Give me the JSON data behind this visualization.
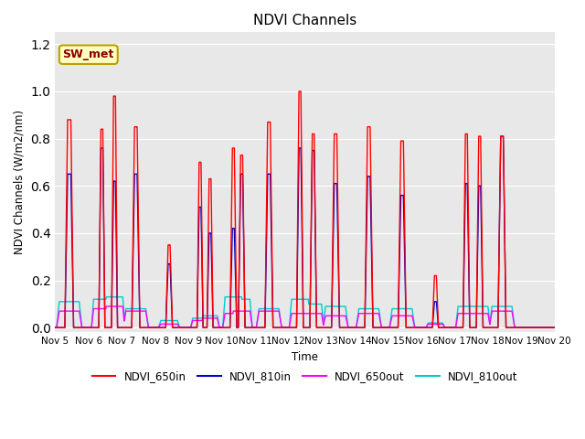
{
  "title": "NDVI Channels",
  "xlabel": "Time",
  "ylabel": "NDVI Channels (W/m2/nm)",
  "ylim": [
    -0.02,
    1.25
  ],
  "yticks": [
    0.0,
    0.2,
    0.4,
    0.6,
    0.8,
    1.0,
    1.2
  ],
  "xtick_labels": [
    "Nov 5",
    "Nov 6",
    "Nov 7",
    "Nov 8",
    "Nov 9",
    "Nov 10",
    "Nov 11",
    "Nov 12",
    "Nov 13",
    "Nov 14",
    "Nov 15",
    "Nov 16",
    "Nov 17",
    "Nov 18",
    "Nov 19",
    "Nov 20"
  ],
  "annotation_text": "SW_met",
  "annotation_color": "#8B0000",
  "annotation_bg": "#FFFFC0",
  "fig_bg": "#FFFFFF",
  "plot_bg": "#E8E8E8",
  "grid_color": "#FFFFFF",
  "colors": {
    "NDVI_650in": "#FF0000",
    "NDVI_810in": "#0000CC",
    "NDVI_650out": "#FF00FF",
    "NDVI_810out": "#00CCCC"
  },
  "linewidths": {
    "NDVI_650in": 1.0,
    "NDVI_810in": 1.0,
    "NDVI_650out": 1.0,
    "NDVI_810out": 1.0
  },
  "peaks": [
    {
      "day": 0.42,
      "NDVI_650in": 0.88,
      "NDVI_810in": 0.65,
      "NDVI_650out": 0.07,
      "NDVI_810out": 0.11,
      "rise": 0.08,
      "fall": 0.08,
      "plateau_in": 0.05,
      "plateau_out": 0.3
    },
    {
      "day": 1.4,
      "NDVI_650in": 0.84,
      "NDVI_810in": 0.76,
      "NDVI_650out": 0.08,
      "NDVI_810out": 0.12,
      "rise": 0.06,
      "fall": 0.06,
      "plateau_in": 0.03,
      "plateau_out": 0.25
    },
    {
      "day": 1.78,
      "NDVI_650in": 0.98,
      "NDVI_810in": 0.62,
      "NDVI_650out": 0.09,
      "NDVI_810out": 0.13,
      "rise": 0.06,
      "fall": 0.06,
      "plateau_in": 0.03,
      "plateau_out": 0.25
    },
    {
      "day": 2.42,
      "NDVI_650in": 0.85,
      "NDVI_810in": 0.65,
      "NDVI_650out": 0.07,
      "NDVI_810out": 0.08,
      "rise": 0.08,
      "fall": 0.08,
      "plateau_in": 0.04,
      "plateau_out": 0.3
    },
    {
      "day": 3.42,
      "NDVI_650in": 0.35,
      "NDVI_810in": 0.27,
      "NDVI_650out": 0.015,
      "NDVI_810out": 0.03,
      "rise": 0.07,
      "fall": 0.07,
      "plateau_in": 0.03,
      "plateau_out": 0.25
    },
    {
      "day": 4.35,
      "NDVI_650in": 0.7,
      "NDVI_810in": 0.51,
      "NDVI_650out": 0.03,
      "NDVI_810out": 0.04,
      "rise": 0.06,
      "fall": 0.06,
      "plateau_in": 0.03,
      "plateau_out": 0.22
    },
    {
      "day": 4.65,
      "NDVI_650in": 0.63,
      "NDVI_810in": 0.4,
      "NDVI_650out": 0.04,
      "NDVI_810out": 0.05,
      "rise": 0.06,
      "fall": 0.06,
      "plateau_in": 0.03,
      "plateau_out": 0.22
    },
    {
      "day": 5.35,
      "NDVI_650in": 0.76,
      "NDVI_810in": 0.42,
      "NDVI_650out": 0.06,
      "NDVI_810out": 0.13,
      "rise": 0.07,
      "fall": 0.07,
      "plateau_in": 0.03,
      "plateau_out": 0.25
    },
    {
      "day": 5.6,
      "NDVI_650in": 0.73,
      "NDVI_810in": 0.65,
      "NDVI_650out": 0.07,
      "NDVI_810out": 0.12,
      "rise": 0.07,
      "fall": 0.07,
      "plateau_in": 0.03,
      "plateau_out": 0.25
    },
    {
      "day": 6.42,
      "NDVI_650in": 0.87,
      "NDVI_810in": 0.65,
      "NDVI_650out": 0.07,
      "NDVI_810out": 0.08,
      "rise": 0.08,
      "fall": 0.08,
      "plateau_in": 0.04,
      "plateau_out": 0.3
    },
    {
      "day": 7.35,
      "NDVI_650in": 1.0,
      "NDVI_810in": 0.76,
      "NDVI_650out": 0.06,
      "NDVI_810out": 0.12,
      "rise": 0.07,
      "fall": 0.07,
      "plateau_in": 0.03,
      "plateau_out": 0.25
    },
    {
      "day": 7.75,
      "NDVI_650in": 0.82,
      "NDVI_810in": 0.75,
      "NDVI_650out": 0.06,
      "NDVI_810out": 0.1,
      "rise": 0.07,
      "fall": 0.07,
      "plateau_in": 0.03,
      "plateau_out": 0.25
    },
    {
      "day": 8.42,
      "NDVI_650in": 0.82,
      "NDVI_810in": 0.61,
      "NDVI_650out": 0.05,
      "NDVI_810out": 0.09,
      "rise": 0.08,
      "fall": 0.08,
      "plateau_in": 0.04,
      "plateau_out": 0.3
    },
    {
      "day": 9.42,
      "NDVI_650in": 0.85,
      "NDVI_810in": 0.64,
      "NDVI_650out": 0.06,
      "NDVI_810out": 0.08,
      "rise": 0.08,
      "fall": 0.08,
      "plateau_in": 0.04,
      "plateau_out": 0.3
    },
    {
      "day": 10.42,
      "NDVI_650in": 0.79,
      "NDVI_810in": 0.56,
      "NDVI_650out": 0.05,
      "NDVI_810out": 0.08,
      "rise": 0.08,
      "fall": 0.08,
      "plateau_in": 0.04,
      "plateau_out": 0.3
    },
    {
      "day": 11.42,
      "NDVI_650in": 0.22,
      "NDVI_810in": 0.11,
      "NDVI_650out": 0.015,
      "NDVI_810out": 0.02,
      "rise": 0.06,
      "fall": 0.06,
      "plateau_in": 0.03,
      "plateau_out": 0.22
    },
    {
      "day": 12.35,
      "NDVI_650in": 0.82,
      "NDVI_810in": 0.61,
      "NDVI_650out": 0.06,
      "NDVI_810out": 0.09,
      "rise": 0.07,
      "fall": 0.07,
      "plateau_in": 0.03,
      "plateau_out": 0.25
    },
    {
      "day": 12.75,
      "NDVI_650in": 0.81,
      "NDVI_810in": 0.6,
      "NDVI_650out": 0.06,
      "NDVI_810out": 0.09,
      "rise": 0.07,
      "fall": 0.07,
      "plateau_in": 0.03,
      "plateau_out": 0.25
    },
    {
      "day": 13.42,
      "NDVI_650in": 0.81,
      "NDVI_810in": 0.81,
      "NDVI_650out": 0.07,
      "NDVI_810out": 0.09,
      "rise": 0.08,
      "fall": 0.08,
      "plateau_in": 0.04,
      "plateau_out": 0.3
    }
  ]
}
